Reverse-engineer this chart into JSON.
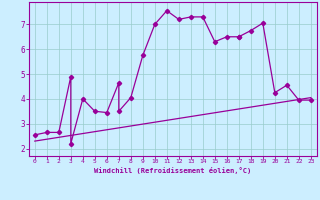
{
  "title": "",
  "xlabel": "Windchill (Refroidissement éolien,°C)",
  "ylabel": "",
  "background_color": "#cceeff",
  "line_color": "#990099",
  "xlim": [
    -0.5,
    23.5
  ],
  "ylim": [
    1.7,
    7.9
  ],
  "xticks": [
    0,
    1,
    2,
    3,
    4,
    5,
    6,
    7,
    8,
    9,
    10,
    11,
    12,
    13,
    14,
    15,
    16,
    17,
    18,
    19,
    20,
    21,
    22,
    23
  ],
  "yticks": [
    2,
    3,
    4,
    5,
    6,
    7
  ],
  "grid_color": "#99cccc",
  "series1_x": [
    0,
    1,
    2,
    3,
    3,
    4,
    5,
    6,
    7,
    7,
    8,
    9,
    10,
    11,
    12,
    13,
    14,
    15,
    16,
    17,
    17,
    18,
    19,
    20,
    21,
    22,
    23
  ],
  "series1_y": [
    2.55,
    2.65,
    2.65,
    4.9,
    2.2,
    4.0,
    3.5,
    3.45,
    4.65,
    3.5,
    4.05,
    5.75,
    7.0,
    7.55,
    7.2,
    7.3,
    7.3,
    6.3,
    6.5,
    6.5,
    6.5,
    6.75,
    7.05,
    4.25,
    4.55,
    3.95,
    3.95
  ],
  "series2_x": [
    0,
    23
  ],
  "series2_y": [
    2.3,
    4.05
  ],
  "marker": "D",
  "marker_size": 2.2,
  "line_width": 0.9
}
